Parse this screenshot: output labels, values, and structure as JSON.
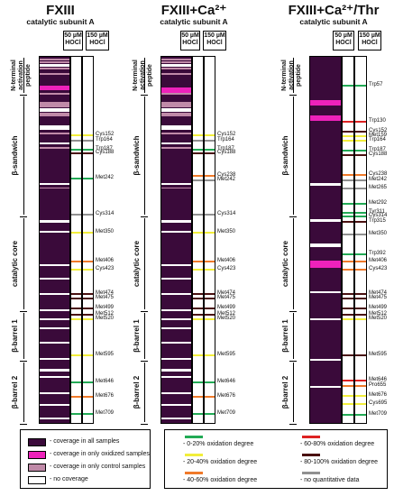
{
  "panels": [
    {
      "title": "FXIII",
      "subtitle": "catalytic subunit A"
    },
    {
      "title": "FXIII+Ca²⁺",
      "subtitle": "catalytic subunit A"
    },
    {
      "title": "FXIII+Ca²⁺/Thr",
      "subtitle": "catalytic subunit A"
    }
  ],
  "column_headers": {
    "col1": "50 µM\nHOCl",
    "col2": "150 µM\nHOCl"
  },
  "domains": [
    "N-terminal activation peptide",
    "β-sandwich",
    "catalytic core",
    "β-barrel 1",
    "β-barrel 2"
  ],
  "residues": {
    "p1": [
      "Cys152",
      "Trp164",
      "Trp187",
      "Cys188",
      "Met242",
      "Cys314",
      "Met350",
      "Met406",
      "Cys423",
      "Met474",
      "Met475",
      "Met499",
      "Met512",
      "Met520",
      "Met595",
      "Met646",
      "Met676",
      "Met709"
    ],
    "p2": [
      "Cys152",
      "Trp164",
      "Trp187",
      "Cys188",
      "Cys238",
      "Met242",
      "Cys314",
      "Met350",
      "Met406",
      "Cys423",
      "Met474",
      "Met475",
      "Met499",
      "Met512",
      "Met520",
      "Met595",
      "Met646",
      "Met676",
      "Met709"
    ],
    "p3": [
      "Trp57",
      "Trp130",
      "Cys152",
      "Met159",
      "Trp164",
      "Trp187",
      "Cys188",
      "Cys238",
      "Met242",
      "Met265",
      "Met292",
      "Tyr311",
      "Cys314",
      "Trp315",
      "Met350",
      "Trp392",
      "Met406",
      "Cys423",
      "Met474",
      "Met475",
      "Met499",
      "Met512",
      "Met520",
      "Met595",
      "Met646",
      "Pro655",
      "Met676",
      "Cys695",
      "Met709"
    ]
  },
  "colors": {
    "all": "#3a0a3a",
    "oxidized": "#ee22bb",
    "control": "#c08aa8",
    "none": "#ffffff",
    "ox0_20": "#22aa55",
    "ox20_40": "#f2ee3a",
    "ox40_60": "#f07a2a",
    "ox60_80": "#dd2222",
    "ox80_100": "#4a1010",
    "noq": "#909090"
  },
  "legend": {
    "coverage": [
      {
        "key": "all",
        "label": "- coverage in all samples"
      },
      {
        "key": "oxidized",
        "label": "- coverage in only oxidized samples"
      },
      {
        "key": "control",
        "label": "- coverage in only control samples"
      },
      {
        "key": "none",
        "label": "- no coverage"
      }
    ],
    "oxidation": [
      {
        "key": "ox0_20",
        "label": "- 0-20% oxidation degree"
      },
      {
        "key": "ox60_80",
        "label": "- 60-80% oxidation degree"
      },
      {
        "key": "ox20_40",
        "label": "- 20-40% oxidation degree"
      },
      {
        "key": "ox80_100",
        "label": "- 80-100% oxidation degree"
      },
      {
        "key": "ox40_60",
        "label": "- 40-60% oxidation degree"
      },
      {
        "key": "noq",
        "label": "- no quantitative data"
      }
    ]
  }
}
